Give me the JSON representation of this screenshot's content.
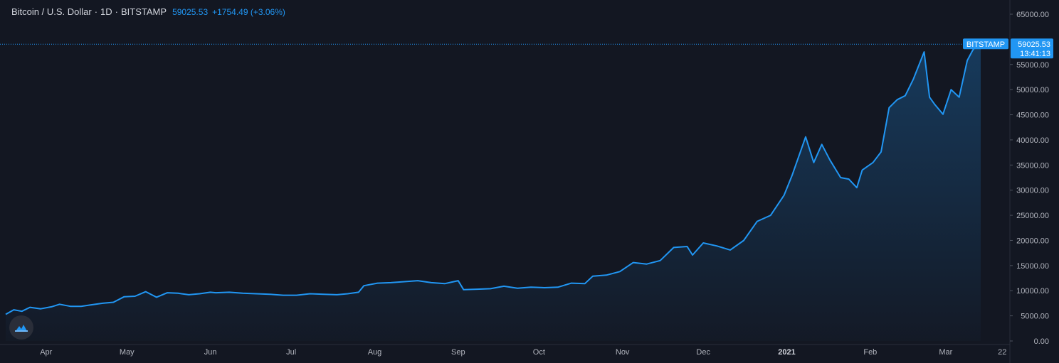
{
  "header": {
    "symbol": "Bitcoin / U.S. Dollar",
    "interval": "1D",
    "exchange": "BITSTAMP",
    "price": "59025.53",
    "change": "+1754.49 (+3.06%)"
  },
  "colors": {
    "background": "#131722",
    "line": "#2196f3",
    "axis_text": "#b2b5be",
    "price_label_bg": "#2196f3"
  },
  "price_label": {
    "exchange": "BITSTAMP",
    "price": "59025.53",
    "countdown": "13:41:13"
  },
  "logo_icon": "tradingview-cloud-icon",
  "chart_data": {
    "type": "area",
    "title": "Bitcoin / U.S. Dollar",
    "xlabel": "",
    "ylabel": "",
    "ylim": [
      0,
      65000
    ],
    "yticks": [
      65000,
      55000,
      50000,
      45000,
      40000,
      35000,
      30000,
      25000,
      20000,
      15000,
      10000,
      5000,
      0
    ],
    "ytick_labels": [
      "65000.00",
      "55000.00",
      "50000.00",
      "45000.00",
      "40000.00",
      "35000.00",
      "30000.00",
      "25000.00",
      "20000.00",
      "15000.00",
      "10000.00",
      "5000.00",
      "0.00"
    ],
    "xtick_labels": [
      "Apr",
      "May",
      "Jun",
      "Jul",
      "Aug",
      "Sep",
      "Oct",
      "Nov",
      "Dec",
      "2021",
      "Feb",
      "Mar",
      "22"
    ],
    "xticks": [
      "2020-04-01",
      "2020-05-01",
      "2020-06-01",
      "2020-07-01",
      "2020-08-01",
      "2020-09-01",
      "2020-10-01",
      "2020-11-01",
      "2020-12-01",
      "2021-01-01",
      "2021-02-01",
      "2021-03-01",
      "2021-03-22"
    ],
    "xlim": [
      "2020-03-17",
      "2021-03-14"
    ],
    "grid": false,
    "last_price_line": 59025.53,
    "series": [
      {
        "x": [
          "2020-03-17",
          "2020-03-20",
          "2020-03-23",
          "2020-03-26",
          "2020-03-30",
          "2020-04-03",
          "2020-04-06",
          "2020-04-10",
          "2020-04-14",
          "2020-04-18",
          "2020-04-22",
          "2020-04-26",
          "2020-04-30",
          "2020-05-04",
          "2020-05-08",
          "2020-05-12",
          "2020-05-16",
          "2020-05-20",
          "2020-05-24",
          "2020-05-28",
          "2020-06-01",
          "2020-06-03",
          "2020-06-08",
          "2020-06-13",
          "2020-06-18",
          "2020-06-23",
          "2020-06-28",
          "2020-07-03",
          "2020-07-08",
          "2020-07-13",
          "2020-07-18",
          "2020-07-22",
          "2020-07-26",
          "2020-07-28",
          "2020-08-02",
          "2020-08-07",
          "2020-08-12",
          "2020-08-17",
          "2020-08-22",
          "2020-08-27",
          "2020-09-01",
          "2020-09-03",
          "2020-09-08",
          "2020-09-13",
          "2020-09-18",
          "2020-09-23",
          "2020-09-28",
          "2020-10-03",
          "2020-10-08",
          "2020-10-13",
          "2020-10-18",
          "2020-10-21",
          "2020-10-26",
          "2020-10-31",
          "2020-11-05",
          "2020-11-10",
          "2020-11-15",
          "2020-11-20",
          "2020-11-25",
          "2020-11-27",
          "2020-12-01",
          "2020-12-06",
          "2020-12-11",
          "2020-12-16",
          "2020-12-21",
          "2020-12-26",
          "2020-12-31",
          "2021-01-03",
          "2021-01-08",
          "2021-01-11",
          "2021-01-14",
          "2021-01-17",
          "2021-01-21",
          "2021-01-24",
          "2021-01-27",
          "2021-01-29",
          "2021-02-02",
          "2021-02-05",
          "2021-02-08",
          "2021-02-11",
          "2021-02-14",
          "2021-02-17",
          "2021-02-21",
          "2021-02-23",
          "2021-02-25",
          "2021-02-28",
          "2021-03-03",
          "2021-03-06",
          "2021-03-09",
          "2021-03-11",
          "2021-03-13",
          "2021-03-14"
        ],
        "values": [
          5300,
          6200,
          5900,
          6700,
          6400,
          6800,
          7300,
          6900,
          6900,
          7200,
          7500,
          7700,
          8800,
          8900,
          9800,
          8700,
          9600,
          9500,
          9200,
          9400,
          9700,
          9600,
          9700,
          9500,
          9400,
          9300,
          9100,
          9100,
          9400,
          9300,
          9200,
          9400,
          9700,
          11000,
          11500,
          11600,
          11800,
          12000,
          11600,
          11400,
          12000,
          10200,
          10300,
          10400,
          10900,
          10500,
          10700,
          10600,
          10700,
          11500,
          11400,
          12900,
          13100,
          13800,
          15600,
          15300,
          16000,
          18600,
          18800,
          17100,
          19500,
          18900,
          18100,
          20000,
          23800,
          25000,
          29000,
          33000,
          40600,
          35500,
          39100,
          36000,
          32500,
          32200,
          30500,
          34000,
          35500,
          37600,
          46400,
          48000,
          48800,
          52100,
          57500,
          48500,
          47000,
          45100,
          50000,
          48500,
          55800,
          57800,
          59300,
          59025.53
        ]
      }
    ]
  }
}
